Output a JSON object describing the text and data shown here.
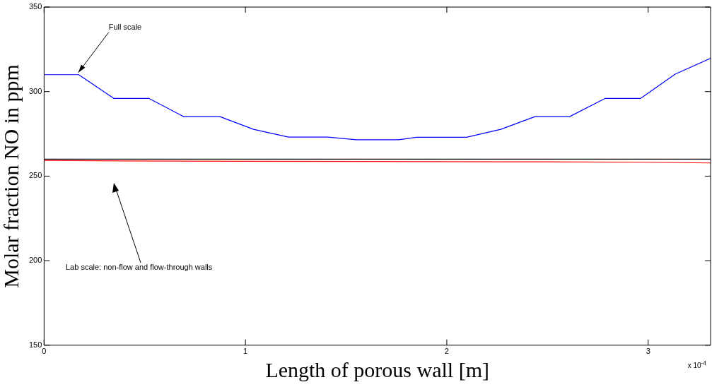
{
  "chart_data": {
    "type": "line",
    "xlabel": "Length of porous wall [m]",
    "ylabel": "Molar fraction NO in ppm",
    "xlim": [
      0,
      3.31
    ],
    "xticks": [
      0,
      1,
      2,
      3
    ],
    "ylim": [
      150,
      350
    ],
    "yticks": [
      150,
      200,
      250,
      300,
      350
    ],
    "grid": false,
    "legend": false,
    "marker": "none",
    "line_style": "solid",
    "series": [
      {
        "color": "#0000ff",
        "x": [
          0,
          0.172,
          0.346,
          0.52,
          0.693,
          0.873,
          1.04,
          1.214,
          1.409,
          1.55,
          1.762,
          1.85,
          2.098,
          2.268,
          2.438,
          2.61,
          2.787,
          2.963,
          3.134,
          3.31
        ],
        "values": [
          310,
          310,
          296,
          296,
          285.2,
          285.2,
          277.7,
          273.1,
          273.1,
          271.5,
          271.5,
          273,
          273,
          277.7,
          285.2,
          285.2,
          296,
          296,
          310.3,
          319.7
        ]
      },
      {
        "color": "#000000",
        "x": [
          0,
          3.31
        ],
        "values": [
          260,
          260
        ]
      },
      {
        "color": "#ff0000",
        "x": [
          0,
          0.4,
          1.0,
          2.3,
          3.0,
          3.31
        ],
        "values": [
          259.3,
          259,
          258.8,
          258.5,
          258.2,
          257.8
        ]
      }
    ],
    "annotations": [
      {
        "text": "Full scale",
        "x": 0.17,
        "y": 310
      },
      "Lab scale: non-flow and flow-through walls",
      "x 10$^{-4}$"
    ]
  }
}
